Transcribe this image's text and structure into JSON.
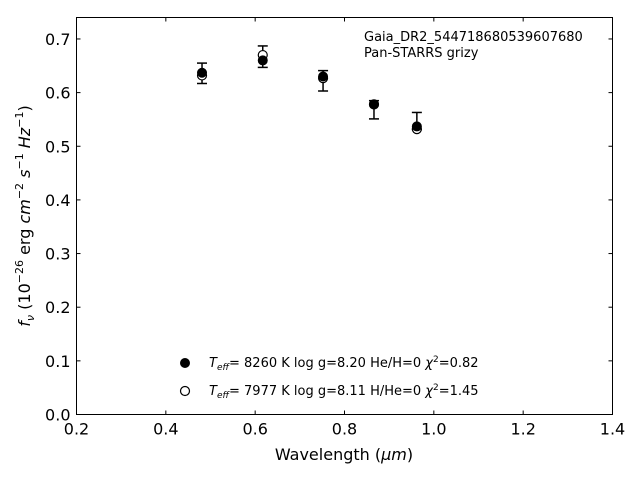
{
  "chart_data": {
    "type": "scatter",
    "xlabel_text": "Wavelength (",
    "xlabel_unit": "μm",
    "xlabel_close": ")",
    "ylabel_f": "f",
    "ylabel_sub": "ν",
    "ylabel_open": " (10",
    "ylabel_exp1": "−26",
    "ylabel_erg": " erg ",
    "ylabel_cm": "cm",
    "ylabel_exp2": "−2",
    "ylabel_s": "s",
    "ylabel_exp3": "−1",
    "ylabel_hz": "Hz",
    "ylabel_exp4": "−1",
    "ylabel_close": ")",
    "xlim": [
      0.2,
      1.4
    ],
    "ylim": [
      0.0,
      0.74
    ],
    "xticks": [
      0.2,
      0.4,
      0.6,
      0.8,
      1.0,
      1.2,
      1.4
    ],
    "xtick_labels": [
      "0.2",
      "0.4",
      "0.6",
      "0.8",
      "1.0",
      "1.2",
      "1.4"
    ],
    "yticks": [
      0.0,
      0.1,
      0.2,
      0.3,
      0.4,
      0.5,
      0.6,
      0.7
    ],
    "ytick_labels": [
      "0.0",
      "0.1",
      "0.2",
      "0.3",
      "0.4",
      "0.5",
      "0.6",
      "0.7"
    ],
    "grid": false,
    "annotation_line1": "Gaia_DR2_544718680539607680",
    "annotation_line2": "Pan-STARRS grizy",
    "observed": {
      "x": [
        0.481,
        0.617,
        0.752,
        0.866,
        0.962
      ],
      "y": [
        0.636,
        0.667,
        0.622,
        0.568,
        0.547
      ],
      "yerr": [
        0.019,
        0.02,
        0.019,
        0.017,
        0.016
      ]
    },
    "series": [
      {
        "marker": "filled",
        "x": [
          0.481,
          0.617,
          0.752,
          0.866,
          0.962
        ],
        "y": [
          0.637,
          0.66,
          0.63,
          0.578,
          0.537
        ]
      },
      {
        "marker": "open",
        "x": [
          0.481,
          0.617,
          0.752,
          0.866,
          0.962
        ],
        "y": [
          0.632,
          0.67,
          0.627,
          0.578,
          0.532
        ]
      }
    ],
    "legend": [
      {
        "teff_symbol": "T",
        "teff_sub": "eff",
        "text": "=  8260 K  log g=8.20  He/H=0  ",
        "chi_symbol": "χ",
        "chi_sup": "2",
        "chi_text": "=0.82"
      },
      {
        "teff_symbol": "T",
        "teff_sub": "eff",
        "text": "=  7977 K  log g=8.11  H/He=0  ",
        "chi_symbol": "χ",
        "chi_sup": "2",
        "chi_text": "=1.45"
      }
    ]
  }
}
